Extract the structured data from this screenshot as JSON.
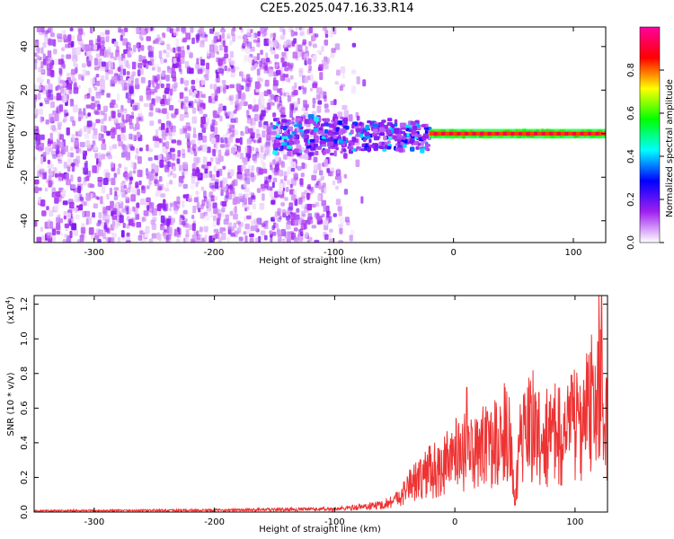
{
  "figure_title": "C2E5.2025.047.16.33.R14",
  "chart_data": [
    {
      "type": "heatmap",
      "xlabel": "Height of straight line (km)",
      "ylabel": "Frequency (Hz)",
      "xlim": [
        -350,
        127
      ],
      "ylim": [
        -50,
        49
      ],
      "x_ticks": [
        -300,
        -200,
        -100,
        0,
        100
      ],
      "y_ticks": [
        -40,
        -20,
        0,
        20,
        40
      ],
      "colorbar": {
        "label": "Normalized spectral amplitude",
        "range": [
          0,
          1
        ],
        "ticks": [
          "0.0",
          "0.2",
          "0.4",
          "0.6",
          "0.8"
        ],
        "colors": [
          "#ffffff",
          "#a020f0",
          "#0000ff",
          "#00ffff",
          "#00ff00",
          "#ffff00",
          "#ff0000",
          "#ff00a0"
        ]
      },
      "regions": [
        {
          "desc": "noise",
          "x_range": [
            -350,
            -120
          ],
          "y_range": [
            -50,
            49
          ],
          "amplitude": 0.05
        },
        {
          "desc": "signal cluster",
          "x_range": [
            -150,
            -20
          ],
          "y_range": [
            -18,
            12
          ],
          "amplitude": 0.35
        },
        {
          "desc": "carrier line",
          "x_range": [
            -20,
            127
          ],
          "y_range": [
            -2,
            2
          ],
          "amplitude": 0.75
        }
      ]
    },
    {
      "type": "line",
      "xlabel": "Height of straight line (km)",
      "ylabel": "SNR (10 * v/v)",
      "scale_label": "(x10",
      "scale_exp": "4",
      "scale_close": ")",
      "xlim": [
        -350,
        127
      ],
      "ylim": [
        0,
        1.25
      ],
      "x_ticks": [
        -300,
        -200,
        -100,
        0,
        100
      ],
      "y_ticks": [
        "0.0",
        "0.2",
        "0.4",
        "0.6",
        "0.8",
        "1.0",
        "1.2"
      ],
      "series_color": "#ee3333",
      "envelope": {
        "x": [
          -350,
          -200,
          -150,
          -100,
          -80,
          -60,
          -50,
          -40,
          -30,
          -25,
          -20,
          -10,
          -5,
          0,
          10,
          20,
          30,
          35,
          40,
          45,
          48,
          50,
          52,
          55,
          60,
          65,
          70,
          80,
          90,
          100,
          105,
          110,
          115,
          118,
          120,
          122,
          125,
          127
        ],
        "y": [
          0.01,
          0.015,
          0.02,
          0.025,
          0.04,
          0.06,
          0.1,
          0.18,
          0.25,
          0.3,
          0.3,
          0.35,
          0.38,
          0.42,
          0.45,
          0.48,
          0.5,
          0.52,
          0.55,
          0.65,
          0.3,
          0.05,
          0.3,
          0.6,
          0.7,
          0.65,
          0.5,
          0.6,
          0.55,
          0.7,
          0.6,
          0.75,
          0.85,
          0.7,
          1.25,
          0.9,
          0.5,
          0.7
        ]
      },
      "peaks": [
        {
          "x": 10,
          "y": 0.72
        },
        {
          "x": 27,
          "y": 0.58
        },
        {
          "x": 50,
          "y": 0.04
        },
        {
          "x": 70,
          "y": 0.69
        },
        {
          "x": 97,
          "y": 0.79
        },
        {
          "x": 122,
          "y": 1.25
        }
      ]
    }
  ]
}
